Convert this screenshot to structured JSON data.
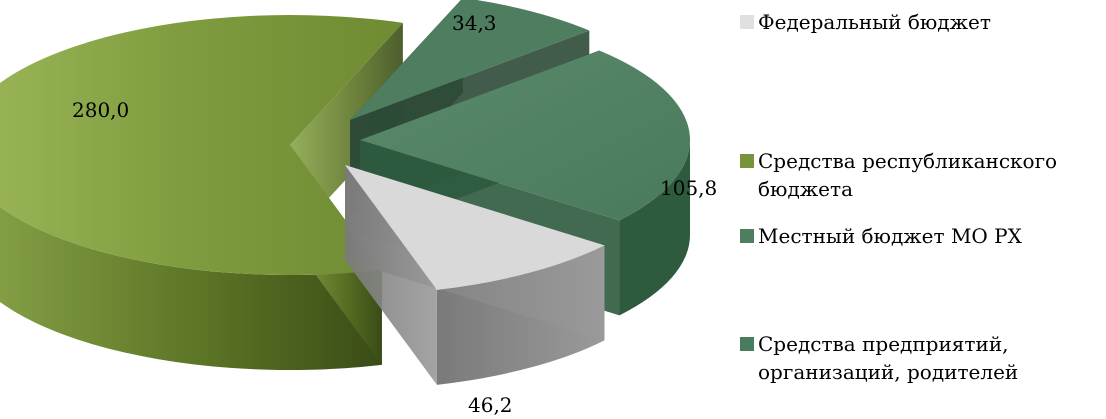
{
  "chart_data": {
    "type": "pie",
    "title": "",
    "slices": [
      {
        "label": "Федеральный бюджет",
        "value": 46.2,
        "display": "46,2",
        "color": "#d9d9d9"
      },
      {
        "label": "Средства республиканского бюджета",
        "value": 280.0,
        "display": "280,0",
        "color": "#77933c"
      },
      {
        "label": "Местный бюджет МО РХ",
        "value": 34.3,
        "display": "34,3",
        "color": "#4f7d5f"
      },
      {
        "label": "Средства предприятий, организаций, родителей",
        "value": 105.8,
        "display": "105,8",
        "color": "#4a7c5f"
      }
    ],
    "legend_position": "right"
  },
  "legend": {
    "items": [
      {
        "label": "Федеральный бюджет",
        "color": "#e0e0e0"
      },
      {
        "label": "Средства республиканского бюджета",
        "color": "#77933c"
      },
      {
        "label": "Местный бюджет МО РХ",
        "color": "#4f7d5f"
      },
      {
        "label": "Средства предприятий, организаций, родителей",
        "color": "#4a7c5f"
      }
    ]
  }
}
